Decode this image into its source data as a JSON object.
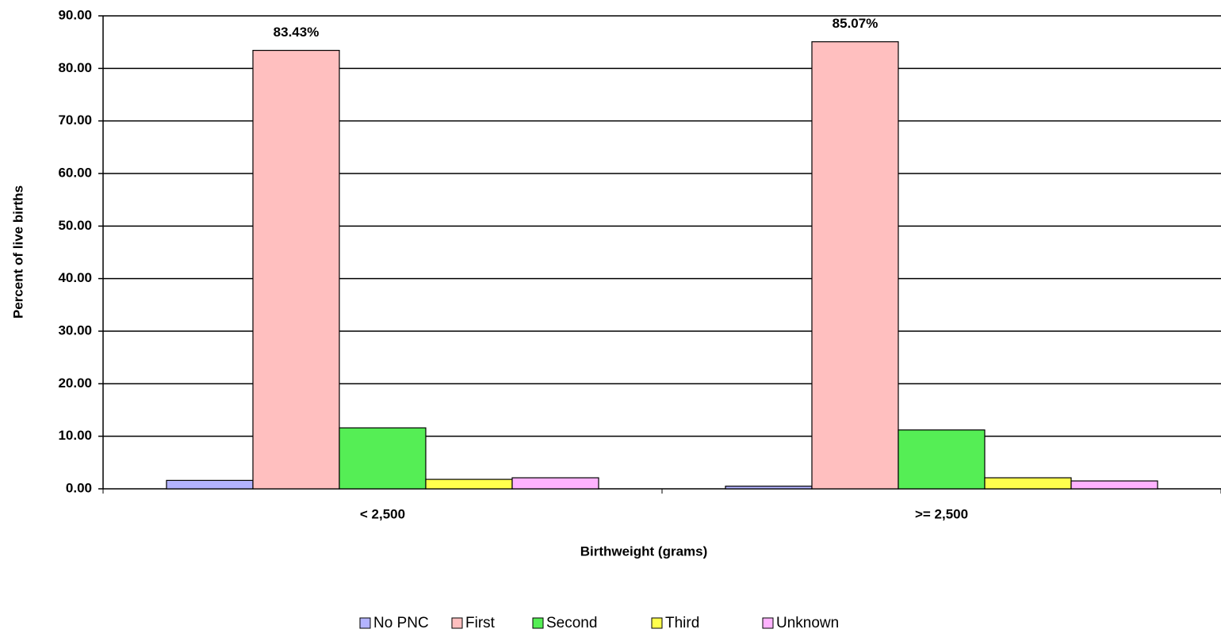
{
  "chart_data": {
    "type": "bar",
    "x_label": "Birthweight (grams)",
    "y_label": "Percent of live births",
    "categories": [
      "< 2,500",
      ">= 2,500"
    ],
    "series": [
      {
        "name": "No PNC",
        "color": "#b3b3ff",
        "values": [
          1.6,
          0.5
        ]
      },
      {
        "name": "First",
        "color": "#ffbfbf",
        "values": [
          83.43,
          85.07
        ],
        "value_labels": [
          "83.43%",
          "85.07%"
        ]
      },
      {
        "name": "Second",
        "color": "#55ee55",
        "values": [
          11.6,
          11.2
        ]
      },
      {
        "name": "Third",
        "color": "#ffff4d",
        "values": [
          1.8,
          2.1
        ]
      },
      {
        "name": "Unknown",
        "color": "#ffb3ff",
        "values": [
          2.1,
          1.5
        ]
      }
    ],
    "ylim": [
      0,
      90
    ],
    "yticks": [
      {
        "value": 0,
        "label": "0.00"
      },
      {
        "value": 10,
        "label": "10.00"
      },
      {
        "value": 20,
        "label": "20.00"
      },
      {
        "value": 30,
        "label": "30.00"
      },
      {
        "value": 40,
        "label": "40.00"
      },
      {
        "value": 50,
        "label": "50.00"
      },
      {
        "value": 60,
        "label": "60.00"
      },
      {
        "value": 70,
        "label": "70.00"
      },
      {
        "value": 80,
        "label": "80.00"
      },
      {
        "value": 90,
        "label": "90.00"
      }
    ],
    "grid": true,
    "legend": "bottom"
  }
}
